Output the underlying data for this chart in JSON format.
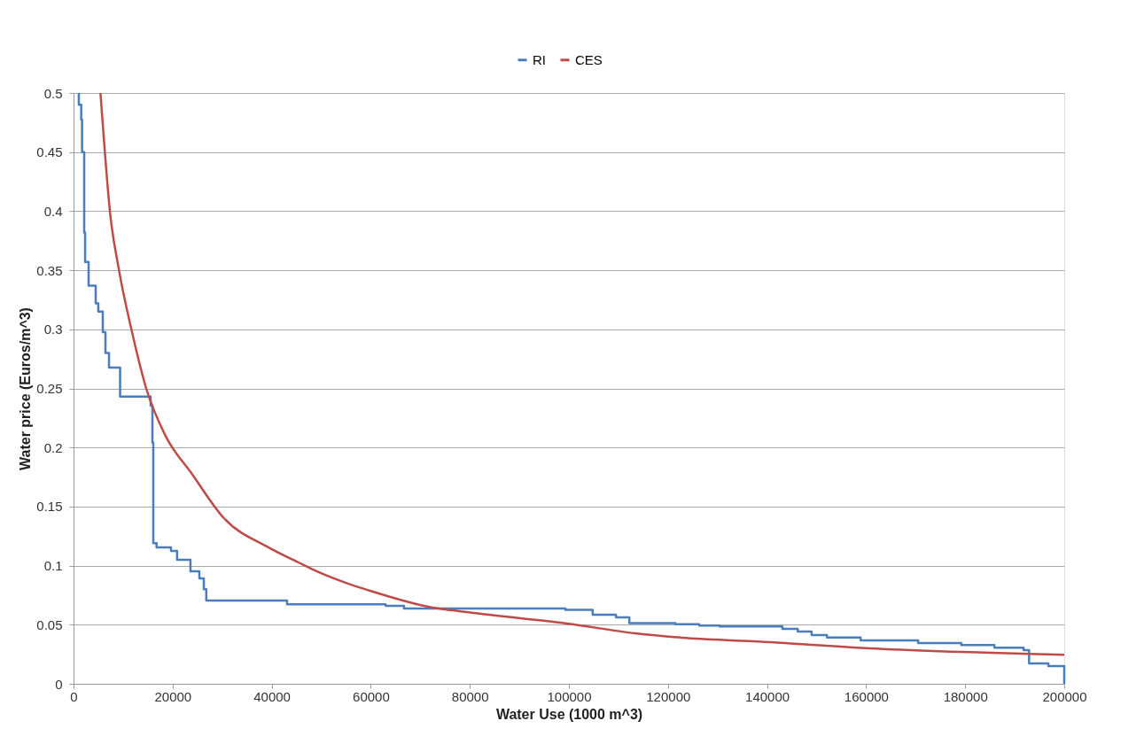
{
  "chart_data": {
    "type": "line",
    "xlabel": "Water Use (1000 m^3)",
    "ylabel": "Water price (Euros/m^3)",
    "xlim": [
      0,
      200000
    ],
    "xticks": [
      0,
      20000,
      40000,
      60000,
      80000,
      100000,
      120000,
      140000,
      160000,
      180000,
      200000
    ],
    "ylim": [
      0,
      0.5
    ],
    "yticks": [
      0,
      0.05,
      0.1,
      0.15,
      0.2,
      0.25,
      0.3,
      0.35,
      0.4,
      0.45,
      0.5
    ],
    "grid": "y",
    "legend": "top",
    "marker": "none",
    "line_style": "solid",
    "series": [
      {
        "name": "RI",
        "color": "#4a7ebb",
        "x": [
          1070,
          1070,
          1550,
          1550,
          1720,
          1720,
          2150,
          2150,
          2330,
          2330,
          3040,
          3040,
          4470,
          4470,
          5000,
          5000,
          5900,
          5900,
          6440,
          6440,
          7160,
          7160,
          9400,
          9400,
          15560,
          15560,
          15920,
          15920,
          16100,
          16100,
          16760,
          16760,
          19680,
          19680,
          20900,
          20900,
          23600,
          23600,
          25400,
          25400,
          26300,
          26300,
          26800,
          26800,
          43100,
          43100,
          63000,
          63000,
          66700,
          66700,
          99300,
          99300,
          104800,
          104800,
          109500,
          109500,
          112200,
          112200,
          121500,
          121500,
          126300,
          126300,
          130400,
          130400,
          143100,
          143100,
          146200,
          146200,
          149000,
          149000,
          152100,
          152100,
          158900,
          158900,
          170500,
          170500,
          179200,
          179200,
          185900,
          185900,
          191800,
          191800,
          192900,
          192900,
          196800,
          196800,
          200000,
          200000
        ],
        "values": [
          0.5,
          0.49,
          0.49,
          0.4775,
          0.4775,
          0.45,
          0.45,
          0.382,
          0.382,
          0.357,
          0.357,
          0.337,
          0.337,
          0.322,
          0.322,
          0.315,
          0.315,
          0.2976,
          0.2976,
          0.28,
          0.28,
          0.2676,
          0.2676,
          0.243,
          0.243,
          0.2354,
          0.2354,
          0.204,
          0.204,
          0.119,
          0.119,
          0.1154,
          0.1154,
          0.1124,
          0.1124,
          0.105,
          0.105,
          0.0952,
          0.0952,
          0.0892,
          0.0892,
          0.08,
          0.08,
          0.0705,
          0.0705,
          0.0672,
          0.0672,
          0.066,
          0.066,
          0.0637,
          0.0637,
          0.0626,
          0.0626,
          0.0585,
          0.0585,
          0.0562,
          0.0562,
          0.0513,
          0.0513,
          0.0505,
          0.0505,
          0.0493,
          0.0493,
          0.0485,
          0.0485,
          0.0465,
          0.0465,
          0.0442,
          0.0442,
          0.0412,
          0.0412,
          0.0392,
          0.0392,
          0.0367,
          0.0367,
          0.0345,
          0.0345,
          0.0328,
          0.0328,
          0.0305,
          0.0305,
          0.0285,
          0.0285,
          0.0172,
          0.0172,
          0.015,
          0.015,
          0
        ]
      },
      {
        "name": "CES",
        "color": "#be4b48",
        "x": [
          5430,
          6320,
          7340,
          9180,
          11680,
          14670,
          18550,
          23900,
          30400,
          39400,
          45400,
          47800,
          54900,
          59700,
          71600,
          81200,
          99600,
          113400,
          122900,
          137200,
          163400,
          200000
        ],
        "values": [
          0.5,
          0.45,
          0.4,
          0.35,
          0.3,
          0.25,
          0.21,
          0.1777,
          0.14,
          0.1154,
          0.1027,
          0.0977,
          0.0855,
          0.0789,
          0.0652,
          0.0597,
          0.051,
          0.0427,
          0.039,
          0.036,
          0.0295,
          0.0245
        ]
      }
    ]
  }
}
